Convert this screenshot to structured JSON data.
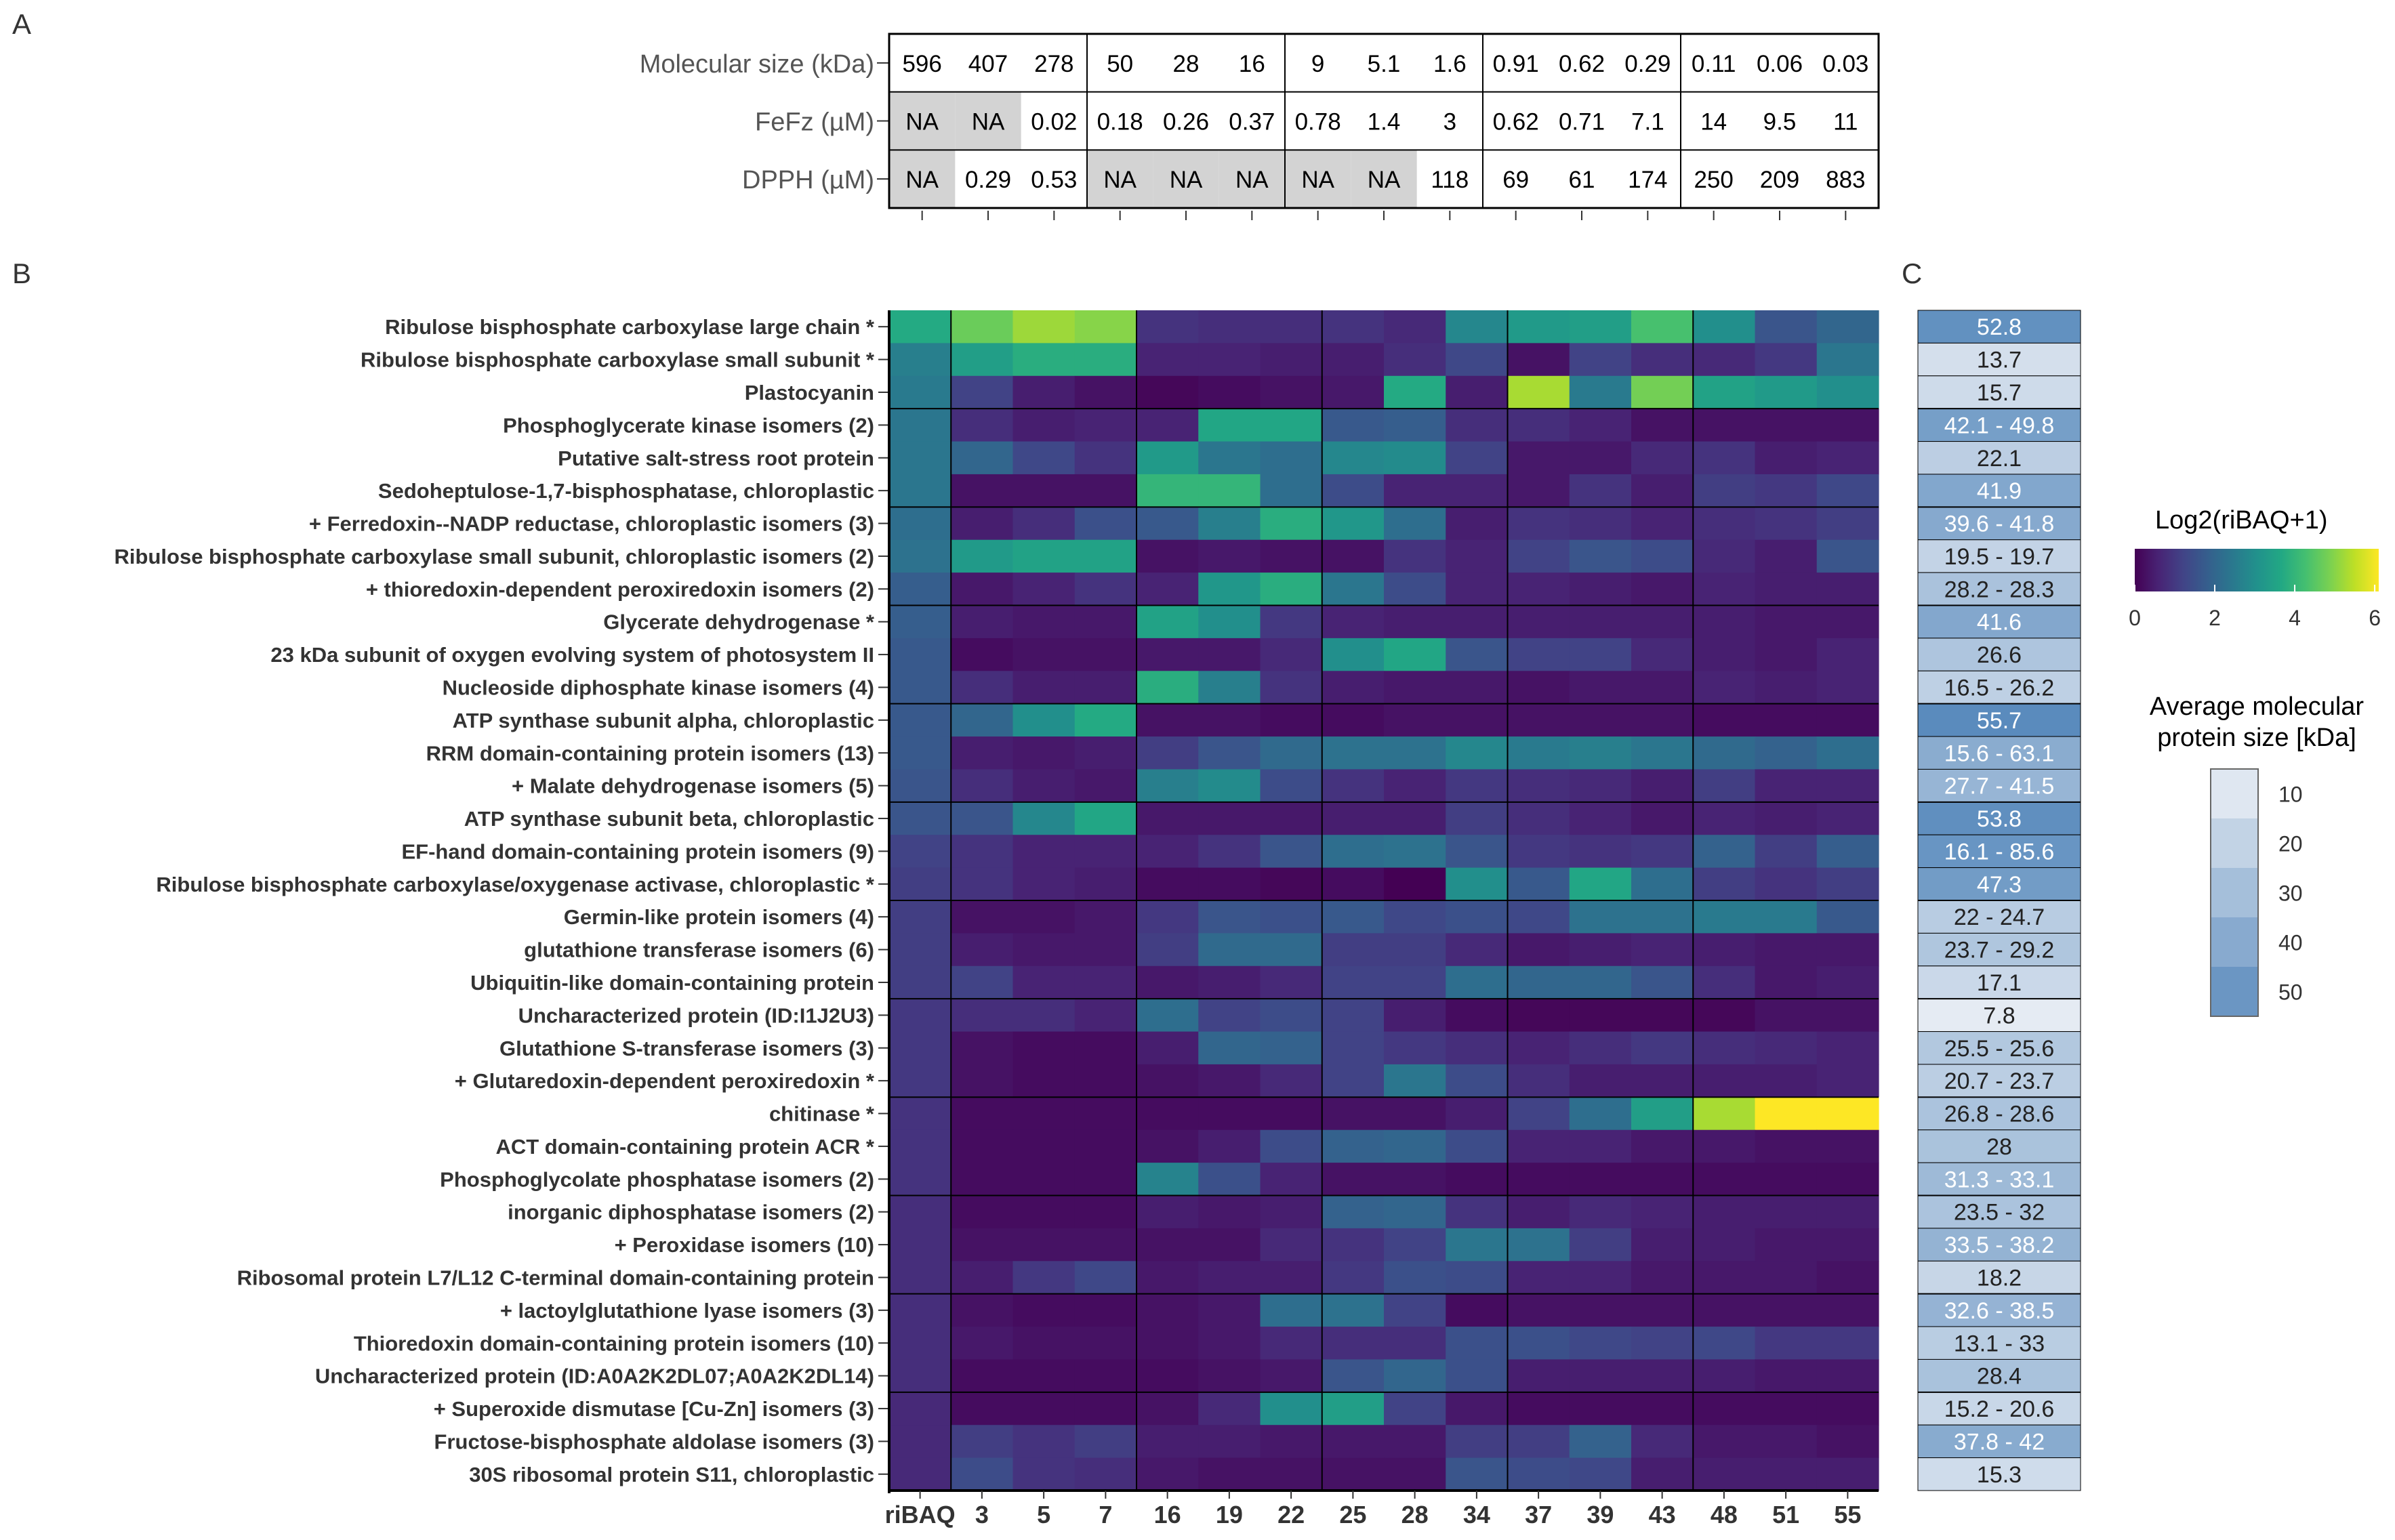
{
  "panel_labels": {
    "a": "A",
    "b": "B",
    "c": "C"
  },
  "chart_data": [
    {
      "type": "table",
      "panel": "A",
      "row_labels": [
        "Molecular size (kDa)",
        "FeFz (µM)",
        "DPPH (µM)"
      ],
      "groups": [
        3,
        3,
        3,
        3,
        3
      ],
      "rows": [
        [
          "596",
          "407",
          "278",
          "50",
          "28",
          "16",
          "9",
          "5.1",
          "1.6",
          "0.91",
          "0.62",
          "0.29",
          "0.11",
          "0.06",
          "0.03"
        ],
        [
          "NA",
          "NA",
          "0.02",
          "0.18",
          "0.26",
          "0.37",
          "0.78",
          "1.4",
          "3",
          "0.62",
          "0.71",
          "7.1",
          "14",
          "9.5",
          "11"
        ],
        [
          "NA",
          "0.29",
          "0.53",
          "NA",
          "NA",
          "NA",
          "NA",
          "NA",
          "118",
          "69",
          "61",
          "174",
          "250",
          "209",
          "883"
        ]
      ],
      "na_color": "#d3d3d3"
    },
    {
      "type": "heatmap",
      "panel": "B",
      "columns": [
        "riBAQ",
        "3",
        "5",
        "7",
        "16",
        "19",
        "22",
        "25",
        "28",
        "34",
        "37",
        "39",
        "43",
        "48",
        "51",
        "55"
      ],
      "column_groups": [
        1,
        3,
        3,
        3,
        3,
        3
      ],
      "row_groups": [
        3,
        3,
        3,
        3,
        3,
        3,
        3,
        3,
        3,
        3,
        3,
        3
      ],
      "rows": [
        "Ribulose bisphosphate carboxylase large chain *",
        "Ribulose bisphosphate carboxylase small subunit *",
        "Plastocyanin",
        "Phosphoglycerate kinase isomers (2)",
        "Putative salt-stress root protein",
        "Sedoheptulose-1,7-bisphosphatase, chloroplastic",
        "+ Ferredoxin--NADP reductase, chloroplastic isomers (3)",
        "Ribulose bisphosphate carboxylase small subunit, chloroplastic isomers (2)",
        "+ thioredoxin-dependent peroxiredoxin isomers (2)",
        "Glycerate dehydrogenase *",
        "23 kDa subunit of oxygen evolving system of photosystem II",
        "Nucleoside diphosphate kinase isomers (4)",
        "ATP synthase subunit alpha, chloroplastic",
        "RRM domain-containing protein isomers (13)",
        "+ Malate dehydrogenase isomers (5)",
        "ATP synthase subunit beta, chloroplastic",
        "EF-hand domain-containing protein isomers (9)",
        "Ribulose bisphosphate carboxylase/oxygenase activase, chloroplastic *",
        "Germin-like protein isomers (4)",
        "glutathione transferase isomers (6)",
        "Ubiquitin-like domain-containing protein",
        "Uncharacterized protein (ID:I1J2U3)",
        "Glutathione S-transferase isomers (3)",
        "+ Glutaredoxin-dependent peroxiredoxin *",
        "chitinase *",
        "ACT domain-containing protein ACR *",
        "Phosphoglycolate phosphatase isomers (2)",
        "inorganic diphosphatase isomers (2)",
        "+ Peroxidase isomers (10)",
        "Ribosomal protein L7/L12 C-terminal domain-containing protein",
        "+ lactoylglutathione lyase isomers (3)",
        "Thioredoxin domain-containing protein isomers (10)",
        "Uncharacterized protein (ID:A0A2K2DL07;A0A2K2DL14)",
        "+ Superoxide dismutase [Cu-Zn] isomers (3)",
        "Fructose-bisphosphate aldolase isomers (3)",
        "30S ribosomal protein S11, chloroplastic"
      ],
      "values": [
        [
          3.7,
          4.7,
          5.2,
          5.0,
          0.9,
          0.8,
          0.8,
          0.9,
          0.7,
          2.8,
          3.3,
          3.4,
          4.3,
          3.0,
          1.6,
          2.0
        ],
        [
          2.6,
          3.4,
          3.8,
          3.8,
          0.6,
          0.6,
          0.5,
          0.5,
          0.8,
          1.3,
          0.3,
          1.2,
          0.8,
          0.7,
          1.0,
          2.4
        ],
        [
          2.5,
          1.2,
          0.5,
          0.3,
          0.1,
          0.2,
          0.3,
          0.4,
          3.7,
          0.5,
          5.3,
          2.5,
          4.8,
          3.5,
          3.3,
          3.0
        ],
        [
          2.4,
          0.8,
          0.5,
          0.6,
          0.6,
          3.6,
          3.6,
          1.7,
          1.8,
          0.8,
          0.8,
          0.6,
          0.3,
          0.3,
          0.3,
          0.3
        ],
        [
          2.4,
          2.0,
          1.3,
          0.9,
          3.3,
          2.4,
          2.2,
          2.8,
          2.9,
          1.2,
          0.4,
          0.4,
          0.7,
          0.9,
          0.5,
          0.6
        ],
        [
          2.4,
          0.3,
          0.3,
          0.3,
          4.0,
          4.0,
          2.2,
          1.4,
          0.6,
          0.6,
          0.4,
          0.9,
          0.5,
          1.1,
          1.0,
          1.3
        ],
        [
          2.2,
          0.5,
          0.8,
          1.5,
          1.7,
          2.6,
          3.8,
          3.2,
          2.2,
          0.5,
          0.9,
          0.8,
          0.6,
          0.8,
          0.9,
          1.1
        ],
        [
          2.3,
          3.3,
          3.5,
          3.5,
          0.3,
          0.4,
          0.3,
          0.3,
          0.9,
          0.6,
          1.2,
          1.6,
          1.4,
          0.7,
          0.5,
          1.6
        ],
        [
          1.8,
          0.4,
          0.6,
          0.9,
          0.6,
          3.2,
          3.8,
          2.4,
          1.4,
          0.6,
          0.6,
          0.5,
          0.4,
          0.6,
          0.5,
          0.5
        ],
        [
          1.8,
          0.5,
          0.4,
          0.4,
          3.5,
          3.0,
          1.0,
          0.6,
          0.5,
          0.5,
          0.5,
          0.5,
          0.5,
          0.5,
          0.4,
          0.4
        ],
        [
          1.7,
          0.2,
          0.3,
          0.3,
          0.4,
          0.4,
          0.7,
          3.0,
          3.6,
          1.6,
          1.2,
          1.2,
          0.7,
          0.5,
          0.4,
          0.6
        ],
        [
          1.7,
          0.8,
          0.5,
          0.5,
          3.8,
          2.6,
          0.9,
          0.5,
          0.4,
          0.4,
          0.3,
          0.4,
          0.4,
          0.6,
          0.5,
          0.6
        ],
        [
          1.7,
          2.0,
          3.0,
          3.7,
          0.3,
          0.3,
          0.2,
          0.2,
          0.3,
          0.3,
          0.3,
          0.3,
          0.3,
          0.2,
          0.2,
          0.2
        ],
        [
          1.7,
          0.5,
          0.4,
          0.5,
          1.1,
          1.6,
          2.1,
          2.3,
          2.3,
          2.8,
          2.5,
          2.6,
          2.4,
          2.1,
          1.9,
          2.2
        ],
        [
          1.6,
          0.8,
          0.5,
          0.4,
          2.6,
          2.9,
          1.4,
          0.9,
          0.6,
          1.0,
          0.8,
          0.7,
          0.5,
          1.1,
          0.6,
          0.6
        ],
        [
          1.6,
          1.6,
          2.8,
          3.6,
          0.4,
          0.4,
          0.4,
          0.5,
          0.5,
          1.1,
          0.8,
          0.6,
          0.4,
          0.6,
          0.5,
          0.6
        ],
        [
          1.2,
          0.9,
          0.6,
          0.6,
          0.6,
          0.9,
          1.6,
          2.2,
          2.3,
          1.6,
          1.0,
          0.9,
          1.0,
          1.9,
          1.1,
          1.8
        ],
        [
          1.1,
          0.9,
          0.6,
          0.5,
          0.2,
          0.2,
          0.1,
          0.2,
          0.0,
          3.0,
          1.7,
          3.6,
          2.2,
          1.1,
          0.9,
          1.1
        ],
        [
          1.1,
          0.3,
          0.3,
          0.4,
          1.0,
          1.6,
          1.5,
          1.7,
          1.3,
          1.5,
          1.3,
          2.3,
          2.3,
          2.5,
          2.5,
          1.7
        ],
        [
          1.1,
          0.5,
          0.4,
          0.4,
          1.1,
          2.1,
          2.1,
          1.1,
          1.1,
          0.7,
          0.4,
          0.5,
          0.6,
          0.5,
          0.4,
          0.4
        ],
        [
          1.1,
          1.2,
          0.6,
          0.6,
          0.4,
          0.5,
          0.7,
          1.2,
          1.2,
          2.2,
          2.0,
          2.0,
          1.6,
          0.8,
          0.4,
          0.5
        ],
        [
          1.0,
          0.8,
          0.8,
          0.6,
          2.2,
          1.2,
          1.4,
          1.2,
          0.5,
          0.2,
          0.1,
          0.1,
          0.1,
          0.1,
          0.3,
          0.3
        ],
        [
          1.0,
          0.3,
          0.2,
          0.2,
          0.5,
          2.0,
          1.9,
          1.2,
          1.0,
          0.8,
          0.6,
          0.8,
          1.0,
          0.8,
          0.7,
          0.6
        ],
        [
          1.0,
          0.3,
          0.2,
          0.2,
          0.3,
          0.4,
          0.7,
          1.2,
          2.4,
          1.4,
          0.8,
          0.5,
          0.5,
          0.5,
          0.5,
          0.6
        ],
        [
          0.9,
          0.2,
          0.2,
          0.2,
          0.2,
          0.2,
          0.2,
          0.3,
          0.3,
          0.5,
          1.2,
          2.2,
          3.4,
          5.3,
          6.1,
          6.1
        ],
        [
          0.9,
          0.2,
          0.2,
          0.2,
          0.3,
          0.5,
          1.4,
          1.9,
          2.0,
          1.4,
          0.6,
          0.6,
          0.4,
          0.4,
          0.3,
          0.3
        ],
        [
          0.9,
          0.2,
          0.2,
          0.2,
          2.7,
          1.5,
          0.6,
          0.3,
          0.3,
          0.2,
          0.2,
          0.2,
          0.2,
          0.2,
          0.2,
          0.2
        ],
        [
          0.8,
          0.2,
          0.2,
          0.2,
          0.5,
          0.4,
          0.5,
          1.9,
          2.0,
          0.9,
          0.5,
          0.7,
          0.6,
          0.5,
          0.5,
          0.5
        ],
        [
          0.8,
          0.3,
          0.3,
          0.3,
          0.3,
          0.3,
          0.7,
          0.9,
          1.2,
          2.4,
          2.3,
          1.1,
          0.5,
          0.5,
          0.4,
          0.4
        ],
        [
          0.8,
          0.5,
          1.0,
          1.3,
          0.4,
          0.5,
          0.5,
          1.0,
          1.5,
          1.4,
          0.6,
          0.6,
          0.4,
          0.4,
          0.4,
          0.3
        ],
        [
          0.8,
          0.3,
          0.2,
          0.2,
          0.3,
          0.4,
          2.2,
          2.3,
          1.2,
          0.2,
          0.3,
          0.3,
          0.3,
          0.3,
          0.3,
          0.3
        ],
        [
          0.8,
          0.4,
          0.3,
          0.3,
          0.3,
          0.4,
          0.7,
          0.8,
          0.8,
          1.5,
          1.5,
          1.3,
          1.2,
          1.3,
          1.0,
          1.0
        ],
        [
          0.8,
          0.2,
          0.2,
          0.2,
          0.2,
          0.3,
          0.4,
          1.6,
          2.0,
          1.5,
          0.5,
          0.5,
          0.5,
          0.5,
          0.4,
          0.4
        ],
        [
          0.7,
          0.2,
          0.2,
          0.2,
          0.3,
          0.7,
          3.0,
          3.4,
          1.2,
          0.4,
          0.2,
          0.2,
          0.2,
          0.2,
          0.2,
          0.2
        ],
        [
          0.7,
          1.1,
          0.9,
          1.1,
          0.5,
          0.5,
          0.4,
          0.4,
          0.4,
          1.1,
          1.1,
          1.9,
          0.7,
          0.4,
          0.4,
          0.3
        ],
        [
          0.7,
          1.4,
          0.9,
          0.8,
          0.4,
          0.3,
          0.3,
          0.3,
          0.3,
          1.6,
          1.4,
          1.3,
          0.5,
          0.5,
          0.5,
          0.5
        ]
      ],
      "colorscale": [
        "#440154",
        "#482475",
        "#414487",
        "#355f8d",
        "#2a788e",
        "#21918c",
        "#22a884",
        "#44bf70",
        "#7ad151",
        "#bddf26",
        "#fde725"
      ],
      "legend": {
        "title": "Log2(riBAQ+1)",
        "range": [
          0,
          6.1
        ],
        "ticks": [
          "0",
          "2",
          "4",
          "6"
        ]
      }
    },
    {
      "type": "heatmap",
      "panel": "C",
      "labels": [
        "52.8",
        "13.7",
        "15.7",
        "42.1 - 49.8",
        "22.1",
        "41.9",
        "39.6 - 41.8",
        "19.5 - 19.7",
        "28.2 - 28.3",
        "41.6",
        "26.6",
        "16.5 - 26.2",
        "55.7",
        "15.6 - 63.1",
        "27.7 - 41.5",
        "53.8",
        "16.1 - 85.6",
        "47.3",
        "22 - 24.7",
        "23.7 - 29.2",
        "17.1",
        "7.8",
        "25.5 - 25.6",
        "20.7 - 23.7",
        "26.8 - 28.6",
        "28",
        "31.3 - 33.1",
        "23.5 - 32",
        "33.5 - 38.2",
        "18.2",
        "32.6 - 38.5",
        "13.1 - 33",
        "28.4",
        "15.2 - 20.6",
        "37.8 - 42",
        "15.3"
      ],
      "values": [
        52.8,
        13.7,
        15.7,
        45.9,
        22.1,
        41.9,
        40.7,
        19.6,
        28.2,
        41.6,
        26.6,
        21.3,
        55.7,
        39.3,
        34.6,
        53.8,
        50.8,
        47.3,
        23.3,
        26.4,
        17.1,
        7.8,
        25.5,
        22.2,
        27.7,
        28,
        32.2,
        27.7,
        35.8,
        18.2,
        35.5,
        23,
        28.4,
        17.9,
        39.9,
        15.3
      ],
      "colorscale": [
        "#e5ebf3",
        "#5a8bbd"
      ],
      "legend": {
        "title": [
          "Average molecular",
          "protein size [kDa]"
        ],
        "ticks": [
          "10",
          "20",
          "30",
          "40",
          "50"
        ]
      }
    }
  ]
}
